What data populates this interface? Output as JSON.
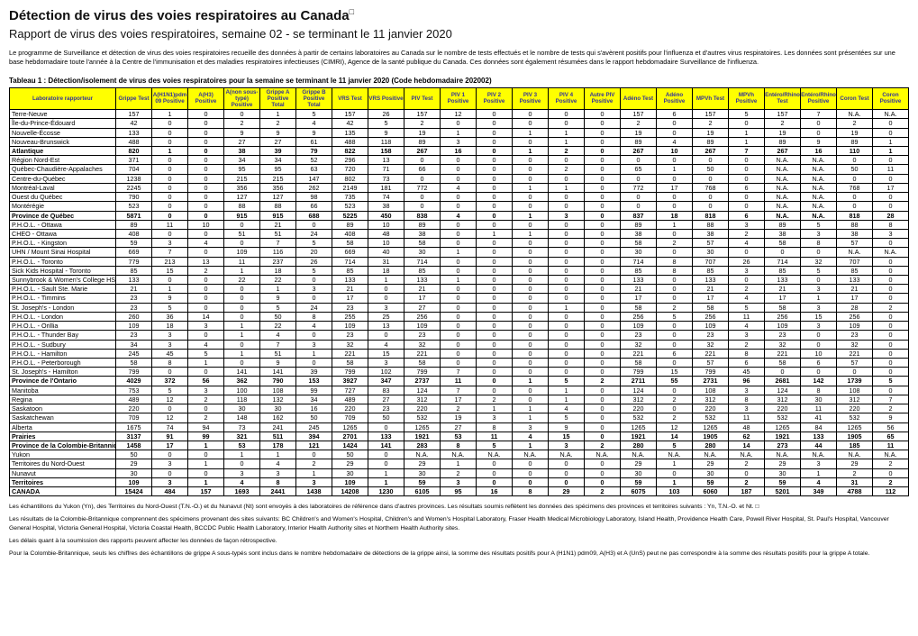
{
  "page": {
    "title": "Détection de virus des voies respiratoires au Canada",
    "title_box_glyph": "□",
    "subtitle": "Rapport de virus des voies respiratoires, semaine 02 - se terminant le 11 janvier 2020",
    "intro": "Le programme de Surveillance et détection de virus des voies respiratoires recueille des données à partir de certains laboratoires au Canada sur le nombre de tests effectués et le nombre de tests qui s'avèrent positifs pour l'influenza et d'autres virus respiratoires. Les données sont présentées sur une base hebdomadaire toute l'année à la Centre de l'immunisation et des maladies respiratoires infectieuses (CIMRI), Agence de la santé publique du Canada. Ces données sont également résumées dans le rapport hebdomadaire Surveillance de l'influenza."
  },
  "colors": {
    "header_bg": "#FFFF00",
    "header_text": "#333399"
  },
  "table": {
    "caption": "Tableau 1 : Détection/isolement de virus des voies respiratoires pour la semaine se terminant le 11 janvier 2020 (Code hebdomadaire 202002)",
    "columns": [
      "Laboratoire rapporteur",
      "Grippe Test",
      "A(H1N1)pdm09 Positive",
      "A(H3) Positive",
      "A(non sous-typé) Positive",
      "Grippe A Positive Total",
      "Grippe B Positive Total",
      "VRS Test",
      "VRS Positive",
      "PIV Test",
      "PIV 1 Positive",
      "PIV 2 Positive",
      "PIV 3 Positive",
      "PIV 4 Positive",
      "Autre PIV Positive",
      "Adéno Test",
      "Adéno Positive",
      "MPVh Test",
      "MPVh Positive",
      "Entéro/Rhino Test",
      "Entéro/Rhino Positive",
      "Coron Test",
      "Coron Positive"
    ],
    "rows": [
      {
        "label": "Terre-Neuve",
        "values": [
          157,
          1,
          0,
          0,
          1,
          5,
          157,
          26,
          157,
          12,
          0,
          0,
          0,
          0,
          157,
          6,
          157,
          5,
          157,
          7,
          "N.A.",
          "N.A."
        ]
      },
      {
        "label": "Île-du-Prince-Édouard",
        "values": [
          42,
          0,
          0,
          2,
          2,
          4,
          42,
          5,
          2,
          0,
          0,
          0,
          0,
          0,
          2,
          0,
          2,
          0,
          2,
          0,
          2,
          0
        ]
      },
      {
        "label": "Nouvelle-Écosse",
        "values": [
          133,
          0,
          0,
          9,
          9,
          9,
          135,
          9,
          19,
          1,
          0,
          1,
          1,
          0,
          19,
          0,
          19,
          1,
          19,
          0,
          19,
          0
        ]
      },
      {
        "label": "Nouveau-Brunswick",
        "values": [
          488,
          0,
          0,
          27,
          27,
          61,
          488,
          118,
          89,
          3,
          0,
          0,
          1,
          0,
          89,
          4,
          89,
          1,
          89,
          9,
          89,
          1
        ]
      },
      {
        "label": "Atlantique",
        "bold": true,
        "values": [
          820,
          1,
          0,
          38,
          39,
          79,
          822,
          158,
          267,
          16,
          0,
          1,
          2,
          0,
          267,
          10,
          267,
          7,
          267,
          16,
          110,
          1
        ]
      },
      {
        "label": "Région Nord-Est",
        "values": [
          371,
          0,
          0,
          34,
          34,
          52,
          296,
          13,
          0,
          0,
          0,
          0,
          0,
          0,
          0,
          0,
          0,
          0,
          "N.A.",
          "N.A.",
          0,
          0
        ]
      },
      {
        "label": "Québec-Chaudière-Appalaches",
        "values": [
          704,
          0,
          0,
          95,
          95,
          63,
          720,
          71,
          66,
          0,
          0,
          0,
          2,
          0,
          65,
          1,
          50,
          0,
          "N.A.",
          "N.A.",
          50,
          11
        ]
      },
      {
        "label": "Centre-du-Québec",
        "values": [
          1238,
          0,
          0,
          215,
          215,
          147,
          802,
          73,
          0,
          0,
          0,
          0,
          0,
          0,
          0,
          0,
          0,
          0,
          "N.A.",
          "N.A.",
          0,
          0
        ]
      },
      {
        "label": "Montréal-Laval",
        "values": [
          2245,
          0,
          0,
          356,
          356,
          262,
          2149,
          181,
          772,
          4,
          0,
          1,
          1,
          0,
          772,
          17,
          768,
          6,
          "N.A.",
          "N.A.",
          768,
          17
        ]
      },
      {
        "label": "Ouest du Québec",
        "values": [
          790,
          0,
          0,
          127,
          127,
          98,
          735,
          74,
          0,
          0,
          0,
          0,
          0,
          0,
          0,
          0,
          0,
          0,
          "N.A.",
          "N.A.",
          0,
          0
        ]
      },
      {
        "label": "Montérégie",
        "values": [
          523,
          0,
          0,
          88,
          88,
          66,
          523,
          38,
          0,
          0,
          0,
          0,
          0,
          0,
          0,
          0,
          0,
          0,
          "N.A.",
          "N.A.",
          0,
          0
        ]
      },
      {
        "label": "Province de Québec",
        "bold": true,
        "values": [
          5871,
          0,
          0,
          915,
          915,
          688,
          5225,
          450,
          838,
          4,
          0,
          1,
          3,
          0,
          837,
          18,
          818,
          6,
          "N.A.",
          "N.A.",
          818,
          28
        ]
      },
      {
        "label": "P.H.O.L. - Ottawa",
        "values": [
          89,
          11,
          10,
          0,
          21,
          0,
          89,
          10,
          89,
          0,
          0,
          0,
          0,
          0,
          89,
          1,
          88,
          3,
          89,
          5,
          88,
          8
        ]
      },
      {
        "label": "CHEO - Ottawa",
        "values": [
          408,
          0,
          0,
          51,
          51,
          24,
          408,
          48,
          38,
          0,
          1,
          1,
          0,
          0,
          38,
          0,
          38,
          2,
          38,
          3,
          38,
          3
        ]
      },
      {
        "label": "P.H.O.L. - Kingston",
        "values": [
          59,
          3,
          4,
          0,
          7,
          5,
          58,
          10,
          58,
          0,
          0,
          0,
          0,
          0,
          58,
          2,
          57,
          4,
          58,
          8,
          57,
          0
        ]
      },
      {
        "label": "UHN / Mount Sinai Hospital",
        "values": [
          669,
          7,
          0,
          109,
          116,
          20,
          669,
          40,
          30,
          1,
          0,
          0,
          0,
          0,
          30,
          0,
          30,
          0,
          0,
          0,
          "N.A.",
          "N.A."
        ]
      },
      {
        "label": "P.H.O.L. - Toronto",
        "values": [
          779,
          213,
          13,
          11,
          237,
          26,
          714,
          31,
          714,
          0,
          0,
          0,
          0,
          0,
          714,
          8,
          707,
          26,
          714,
          32,
          707,
          0
        ]
      },
      {
        "label": "Sick Kids Hospital - Toronto",
        "values": [
          85,
          15,
          2,
          1,
          18,
          5,
          85,
          18,
          85,
          0,
          0,
          0,
          0,
          0,
          85,
          8,
          85,
          3,
          85,
          5,
          85,
          0
        ]
      },
      {
        "label": "Sunnybrook & Women's College HSC",
        "values": [
          133,
          0,
          0,
          22,
          22,
          0,
          133,
          1,
          133,
          1,
          0,
          0,
          0,
          0,
          133,
          0,
          133,
          0,
          133,
          0,
          133,
          0
        ]
      },
      {
        "label": "P.H.O.L. - Sault Ste. Marie",
        "values": [
          21,
          1,
          0,
          0,
          1,
          3,
          21,
          0,
          21,
          0,
          0,
          0,
          0,
          0,
          21,
          0,
          21,
          2,
          21,
          3,
          21,
          0
        ]
      },
      {
        "label": "P.H.O.L. - Timmins",
        "values": [
          23,
          9,
          0,
          0,
          9,
          0,
          17,
          0,
          17,
          0,
          0,
          0,
          0,
          0,
          17,
          0,
          17,
          4,
          17,
          1,
          17,
          0
        ]
      },
      {
        "label": "St. Joseph's - London",
        "values": [
          23,
          5,
          0,
          0,
          5,
          24,
          23,
          3,
          27,
          0,
          0,
          0,
          1,
          0,
          58,
          2,
          58,
          5,
          58,
          3,
          28,
          2
        ]
      },
      {
        "label": "P.H.O.L. - London",
        "values": [
          260,
          36,
          14,
          0,
          50,
          8,
          255,
          25,
          256,
          0,
          0,
          0,
          0,
          0,
          256,
          5,
          256,
          11,
          256,
          15,
          256,
          0
        ]
      },
      {
        "label": "P.H.O.L. - Orillia",
        "values": [
          109,
          18,
          3,
          1,
          22,
          4,
          109,
          13,
          109,
          0,
          0,
          0,
          0,
          0,
          109,
          0,
          109,
          4,
          109,
          3,
          109,
          0
        ]
      },
      {
        "label": "P.H.O.L. - Thunder Bay",
        "values": [
          23,
          3,
          0,
          1,
          4,
          0,
          23,
          0,
          23,
          0,
          0,
          0,
          0,
          0,
          23,
          0,
          23,
          3,
          23,
          0,
          23,
          0
        ]
      },
      {
        "label": "P.H.O.L. - Sudbury",
        "values": [
          34,
          3,
          4,
          0,
          7,
          3,
          32,
          4,
          32,
          0,
          0,
          0,
          0,
          0,
          32,
          0,
          32,
          2,
          32,
          0,
          32,
          0
        ]
      },
      {
        "label": "P.H.O.L. - Hamilton",
        "values": [
          245,
          45,
          5,
          1,
          51,
          1,
          221,
          15,
          221,
          0,
          0,
          0,
          0,
          0,
          221,
          6,
          221,
          8,
          221,
          10,
          221,
          0
        ]
      },
      {
        "label": "P.H.O.L. - Peterborough",
        "values": [
          58,
          8,
          1,
          0,
          9,
          0,
          58,
          3,
          58,
          0,
          0,
          0,
          0,
          0,
          58,
          0,
          57,
          6,
          58,
          6,
          57,
          0
        ]
      },
      {
        "label": "St. Joseph's - Hamilton",
        "values": [
          799,
          0,
          0,
          141,
          141,
          39,
          799,
          102,
          799,
          7,
          0,
          0,
          0,
          0,
          799,
          15,
          799,
          45,
          0,
          0,
          0,
          0
        ]
      },
      {
        "label": "Province de l'Ontario",
        "bold": true,
        "values": [
          4029,
          372,
          56,
          362,
          790,
          153,
          3927,
          347,
          2737,
          11,
          0,
          1,
          5,
          2,
          2711,
          55,
          2731,
          96,
          2681,
          142,
          1739,
          5
        ]
      },
      {
        "label": "Manitoba",
        "values": [
          753,
          5,
          3,
          100,
          108,
          99,
          727,
          83,
          124,
          7,
          0,
          0,
          1,
          0,
          124,
          0,
          108,
          3,
          124,
          8,
          108,
          0
        ]
      },
      {
        "label": "Regina",
        "values": [
          489,
          12,
          2,
          118,
          132,
          34,
          489,
          27,
          312,
          17,
          2,
          0,
          1,
          0,
          312,
          2,
          312,
          8,
          312,
          30,
          312,
          7
        ]
      },
      {
        "label": "Saskatoon",
        "values": [
          220,
          0,
          0,
          30,
          30,
          16,
          220,
          23,
          220,
          2,
          1,
          1,
          4,
          0,
          220,
          0,
          220,
          3,
          220,
          11,
          220,
          2
        ]
      },
      {
        "label": "Saskatchewan",
        "values": [
          709,
          12,
          2,
          148,
          162,
          50,
          709,
          50,
          532,
          19,
          3,
          1,
          5,
          0,
          532,
          2,
          532,
          11,
          532,
          41,
          532,
          9
        ]
      },
      {
        "label": "Alberta",
        "values": [
          1675,
          74,
          94,
          73,
          241,
          245,
          1265,
          0,
          1265,
          27,
          8,
          3,
          9,
          0,
          1265,
          12,
          1265,
          48,
          1265,
          84,
          1265,
          56
        ]
      },
      {
        "label": "Prairies",
        "bold": true,
        "values": [
          3137,
          91,
          99,
          321,
          511,
          394,
          2701,
          133,
          1921,
          53,
          11,
          4,
          15,
          0,
          1921,
          14,
          1905,
          62,
          1921,
          133,
          1905,
          65
        ]
      },
      {
        "label": "Province de la Colombie-Britannique",
        "bold": true,
        "values": [
          1458,
          17,
          1,
          53,
          178,
          121,
          1424,
          141,
          283,
          8,
          5,
          1,
          3,
          2,
          280,
          5,
          280,
          14,
          273,
          44,
          185,
          11
        ]
      },
      {
        "label": "Yukon",
        "values": [
          50,
          0,
          0,
          1,
          1,
          0,
          50,
          0,
          "N.A.",
          "N.A.",
          "N.A.",
          "N.A.",
          "N.A.",
          "N.A.",
          "N.A.",
          "N.A.",
          "N.A.",
          "N.A.",
          "N.A.",
          "N.A.",
          "N.A.",
          "N.A."
        ]
      },
      {
        "label": "Territoires du Nord-Ouest",
        "values": [
          29,
          3,
          1,
          0,
          4,
          2,
          29,
          0,
          29,
          1,
          0,
          0,
          0,
          0,
          29,
          1,
          29,
          2,
          29,
          3,
          29,
          2
        ]
      },
      {
        "label": "Nunavut",
        "values": [
          30,
          0,
          0,
          3,
          3,
          1,
          30,
          1,
          30,
          2,
          0,
          0,
          0,
          0,
          30,
          0,
          30,
          0,
          30,
          1,
          2,
          0
        ]
      },
      {
        "label": "Territoires",
        "bold": true,
        "values": [
          109,
          3,
          1,
          4,
          8,
          3,
          109,
          1,
          59,
          3,
          0,
          0,
          0,
          0,
          59,
          1,
          59,
          2,
          59,
          4,
          31,
          2
        ]
      },
      {
        "label": "CANADA",
        "bold": true,
        "values": [
          15424,
          484,
          157,
          1693,
          2441,
          1438,
          14208,
          1230,
          6105,
          95,
          16,
          8,
          29,
          2,
          6075,
          103,
          6060,
          187,
          5201,
          349,
          4788,
          112
        ]
      }
    ]
  },
  "footnotes": [
    "Les échantillons du Yukon (Yn), des Territoires du Nord-Ouest (T.N.-O.) et du Nunavut (Nt) sont envoyés à des laboratoires de référence dans d'autres provinces. Les résultats soumis reflètent les données des spécimens des provinces et territoires suivants : Yn, T.N.-O. et Nt. □",
    "Les résultats de la Colombie-Britannique comprennent des spécimens provenant des sites suivants: BC Children's and Women's Hospital, Children's and Women's Hospital Laboratory, Fraser Health Medical Microbiology Laboratory, Island Health, Providence Health Care, Powell River Hospital, St. Paul's Hospital, Vancouver General Hospital, Victoria General Hospital, Victoria Coastal Health, BCCDC Public Health Laboratory, Interior Health Authority sites et Northern Health Authority sites.",
    "Les délais quant à la soumission des rapports peuvent affecter les données de façon rétrospective.",
    "Pour la Colombie-Britannique, seuls les chiffres des échantillons de grippe A sous-typés sont inclus dans le nombre hebdomadaire de détections de la grippe ainsi, la somme des résultats positifs pour A (H1N1) pdm09, A(H3) et A (UnS) peut ne pas correspondre à la somme des résultats positifs pour la grippe A totale."
  ]
}
